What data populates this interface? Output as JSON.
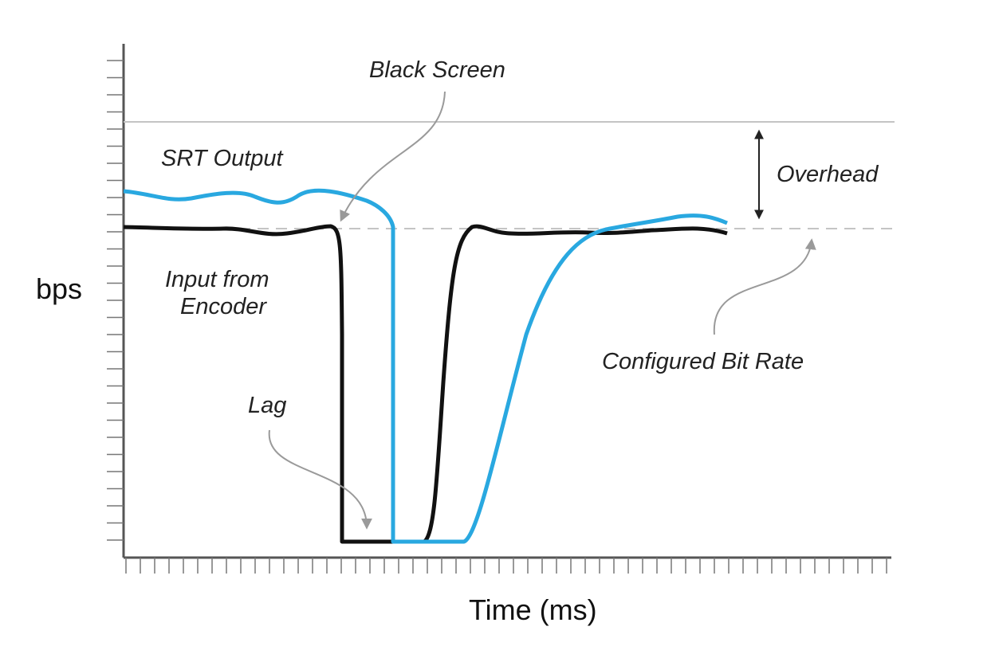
{
  "axes": {
    "y_title": "bps",
    "x_title": "Time (ms)"
  },
  "annotations": {
    "black_screen": "Black Screen",
    "srt_output": "SRT Output",
    "overhead": "Overhead",
    "input_from_encoder_line1": "Input from",
    "input_from_encoder_line2": "Encoder",
    "configured_bit_rate": "Configured Bit Rate",
    "lag": "Lag"
  },
  "colors": {
    "srt_output_line": "#29a8e0",
    "encoder_line": "#111111",
    "reference_lines": "#c4c4c4",
    "axis": "#555555",
    "annotation_arrows": "#9a9a9a"
  }
}
